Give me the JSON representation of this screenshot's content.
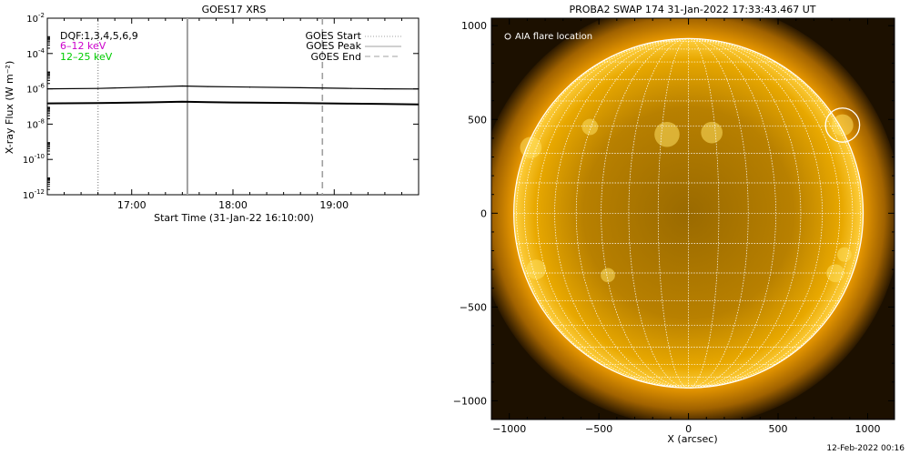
{
  "chart_data": [
    {
      "type": "line",
      "title": "GOES17 XRS",
      "xlabel": "Start Time (31-Jan-22 16:10:00)",
      "ylabel": "X-ray Flux (W m⁻²)",
      "xlim": [
        "16:10",
        "19:50"
      ],
      "ylim": [
        1e-12,
        0.01
      ],
      "y_log": true,
      "x_ticks": [
        "17:00",
        "18:00",
        "19:00"
      ],
      "y_ticks": [
        -12,
        -10,
        -8,
        -6,
        -4,
        -2
      ],
      "dqf_label": "DQF:1,3,4,5,6,9",
      "series": [
        {
          "name": "6–12 keV",
          "color": "#cc00cc",
          "line_color": "#000000",
          "x": [
            "16:10",
            "16:40",
            "17:10",
            "17:30",
            "17:45",
            "18:10",
            "18:40",
            "19:10",
            "19:30",
            "19:50"
          ],
          "y": [
            1e-06,
            1.05e-06,
            1.25e-06,
            1.45e-06,
            1.35e-06,
            1.25e-06,
            1.15e-06,
            1.05e-06,
            1e-06,
            9.8e-07
          ]
        },
        {
          "name": "12–25 keV",
          "color": "#00cc00",
          "line_color": "#000000",
          "x": [
            "16:10",
            "16:40",
            "17:10",
            "17:30",
            "17:45",
            "18:10",
            "18:40",
            "19:10",
            "19:30",
            "19:50"
          ],
          "y": [
            1.5e-07,
            1.55e-07,
            1.7e-07,
            1.85e-07,
            1.75e-07,
            1.65e-07,
            1.55e-07,
            1.45e-07,
            1.4e-07,
            1.3e-07
          ]
        }
      ],
      "markers": [
        {
          "name": "GOES Start",
          "time": "16:40",
          "style": "dotted",
          "color": "#a0a0a0"
        },
        {
          "name": "GOES Peak",
          "time": "17:33",
          "style": "solid",
          "color": "#a0a0a0"
        },
        {
          "name": "GOES End",
          "time": "18:53",
          "style": "dashed",
          "color": "#a0a0a0"
        }
      ],
      "legend_position": "top-right"
    },
    {
      "type": "image",
      "title": "PROBA2 SWAP 174 31-Jan-2022 17:33:43.467 UT",
      "xlabel": "X (arcsec)",
      "ylabel": "",
      "xlim": [
        -1100,
        1150
      ],
      "ylim": [
        -1100,
        1040
      ],
      "x_ticks": [
        -1000,
        -500,
        0,
        500,
        1000
      ],
      "y_ticks": [
        -1000,
        -500,
        0,
        500,
        1000
      ],
      "sun_radius_arcsec": 975,
      "flare_legend": "AIA flare location",
      "flare_location": {
        "x": 860,
        "y": 470,
        "radius": 95
      },
      "grid_spacing_deg": 10,
      "colors": {
        "disk_center": "#b07800",
        "disk_limb": "#ffd040",
        "background": "#1c1000",
        "grid": "#ffffff"
      }
    }
  ],
  "footer": {
    "timestamp": "12-Feb-2022 00:16"
  }
}
